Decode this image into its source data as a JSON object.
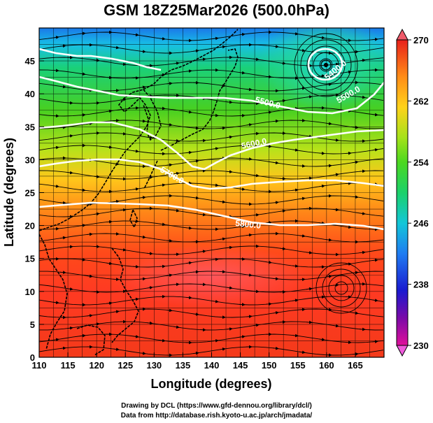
{
  "title": "GSM 18Z25Mar2026 (500.0hPa)",
  "x_axis": {
    "label": "Longitude (degrees)",
    "range": [
      110,
      170
    ],
    "ticks": [
      "110",
      "115",
      "120",
      "125",
      "130",
      "135",
      "140",
      "145",
      "150",
      "155",
      "160",
      "165"
    ]
  },
  "y_axis": {
    "label": "Latitude  (degrees)",
    "range": [
      0,
      50
    ],
    "ticks": [
      "0",
      "5",
      "10",
      "15",
      "20",
      "25",
      "30",
      "35",
      "40",
      "45"
    ]
  },
  "colorbar": {
    "ticks": [
      "230",
      "238",
      "246",
      "254",
      "262",
      "270"
    ],
    "stops": [
      "#e0109a",
      "#5a0aa0",
      "#1020d8",
      "#1f7cf2",
      "#12c6d8",
      "#1bd16a",
      "#4cd820",
      "#a5e21a",
      "#ffd21a",
      "#ff8c18",
      "#ff3e1a",
      "#e8201a"
    ]
  },
  "contours": [
    {
      "label": "5500.0"
    },
    {
      "label": "5800.0"
    },
    {
      "label": "5700.0"
    },
    {
      "label": "5600.0"
    },
    {
      "label": "5400.0"
    },
    {
      "label": "5500.0"
    }
  ],
  "footer": {
    "credit1": "Drawing by DCL (https://www.gfd-dennou.org/library/dcl/)",
    "credit2": "Data from http://database.rish.kyoto-u.ac.jp/arch/jmadata/"
  }
}
